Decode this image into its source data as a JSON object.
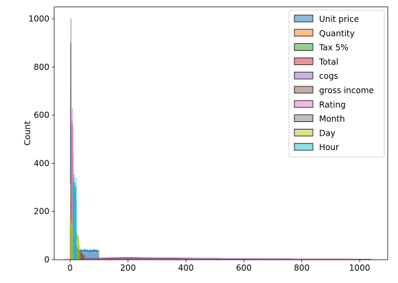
{
  "chart_data": {
    "type": "histogram",
    "title": "",
    "xlabel": "",
    "ylabel": "Count",
    "xlim": [
      -55,
      1097
    ],
    "ylim": [
      0,
      1050
    ],
    "xticks": [
      0,
      200,
      400,
      600,
      800,
      1000
    ],
    "yticks": [
      0,
      200,
      400,
      600,
      800,
      1000
    ],
    "grid": false,
    "legend_position": "top-right",
    "series": [
      {
        "name": "Unit price",
        "color": "#1f77b4",
        "range": [
          10,
          100
        ],
        "bins": [
          [
            10,
            30
          ],
          [
            14,
            35
          ],
          [
            18,
            40
          ],
          [
            22,
            38
          ],
          [
            26,
            42
          ],
          [
            30,
            36
          ],
          [
            34,
            40
          ],
          [
            38,
            44
          ],
          [
            42,
            38
          ],
          [
            46,
            41
          ],
          [
            50,
            45
          ],
          [
            54,
            39
          ],
          [
            58,
            42
          ],
          [
            62,
            40
          ],
          [
            66,
            38
          ],
          [
            70,
            43
          ],
          [
            74,
            41
          ],
          [
            78,
            39
          ],
          [
            82,
            44
          ],
          [
            86,
            40
          ],
          [
            90,
            42
          ],
          [
            94,
            38
          ],
          [
            98,
            40
          ]
        ]
      },
      {
        "name": "Quantity",
        "color": "#ff7f0e",
        "range": [
          1,
          10
        ],
        "bins": [
          [
            1,
            240
          ],
          [
            2,
            260
          ],
          [
            3,
            300
          ],
          [
            4,
            280
          ],
          [
            5,
            375
          ],
          [
            6,
            320
          ],
          [
            7,
            290
          ],
          [
            8,
            310
          ],
          [
            9,
            260
          ],
          [
            10,
            200
          ]
        ]
      },
      {
        "name": "Tax 5%",
        "color": "#2ca02c",
        "range": [
          0.5,
          50
        ],
        "bins": [
          [
            1,
            160
          ],
          [
            4,
            150
          ],
          [
            7,
            130
          ],
          [
            10,
            110
          ],
          [
            13,
            95
          ],
          [
            16,
            80
          ],
          [
            19,
            70
          ],
          [
            22,
            60
          ],
          [
            25,
            50
          ],
          [
            28,
            42
          ],
          [
            31,
            36
          ],
          [
            34,
            30
          ],
          [
            37,
            25
          ],
          [
            40,
            20
          ],
          [
            43,
            16
          ],
          [
            46,
            12
          ],
          [
            49,
            10
          ]
        ]
      },
      {
        "name": "Total",
        "color": "#d62728",
        "range": [
          10,
          1042
        ],
        "bins": [
          [
            30,
            4
          ],
          [
            60,
            5
          ],
          [
            100,
            6
          ],
          [
            150,
            8
          ],
          [
            200,
            9
          ],
          [
            250,
            8
          ],
          [
            300,
            7
          ],
          [
            350,
            7
          ],
          [
            400,
            6
          ],
          [
            450,
            5
          ],
          [
            500,
            5
          ],
          [
            550,
            4
          ],
          [
            600,
            4
          ],
          [
            650,
            3
          ],
          [
            700,
            3
          ],
          [
            750,
            3
          ],
          [
            800,
            2
          ],
          [
            850,
            2
          ],
          [
            900,
            2
          ],
          [
            950,
            2
          ],
          [
            1000,
            1
          ],
          [
            1040,
            1
          ]
        ]
      },
      {
        "name": "cogs",
        "color": "#9467bd",
        "range": [
          10,
          993
        ],
        "bins": [
          [
            30,
            3
          ],
          [
            100,
            4
          ],
          [
            200,
            5
          ],
          [
            300,
            5
          ],
          [
            400,
            4
          ],
          [
            500,
            4
          ],
          [
            600,
            3
          ],
          [
            700,
            3
          ],
          [
            800,
            2
          ],
          [
            900,
            2
          ],
          [
            990,
            1
          ]
        ]
      },
      {
        "name": "gross income",
        "color": "#8c564b",
        "range": [
          0.5,
          50
        ],
        "bins": [
          [
            2,
            110
          ],
          [
            6,
            100
          ],
          [
            10,
            90
          ],
          [
            14,
            80
          ],
          [
            18,
            70
          ],
          [
            22,
            60
          ],
          [
            26,
            50
          ],
          [
            30,
            40
          ],
          [
            34,
            35
          ],
          [
            38,
            30
          ],
          [
            42,
            25
          ],
          [
            46,
            20
          ],
          [
            49,
            15
          ]
        ]
      },
      {
        "name": "Rating",
        "color": "#e377c2",
        "range": [
          4,
          10
        ],
        "bins": [
          [
            4,
            300
          ],
          [
            5,
            420
          ],
          [
            6,
            580
          ],
          [
            7,
            628
          ],
          [
            8,
            560
          ],
          [
            9,
            440
          ],
          [
            10,
            310
          ]
        ]
      },
      {
        "name": "Month",
        "color": "#7f7f7f",
        "range": [
          1,
          3
        ],
        "bins": [
          [
            1,
            352
          ],
          [
            2,
            1000
          ],
          [
            3,
            345
          ]
        ]
      },
      {
        "name": "Day",
        "color": "#bcbd22",
        "range": [
          1,
          31
        ],
        "bins": [
          [
            1,
            180
          ],
          [
            4,
            150
          ],
          [
            7,
            140
          ],
          [
            10,
            130
          ],
          [
            13,
            120
          ],
          [
            16,
            125
          ],
          [
            19,
            115
          ],
          [
            22,
            110
          ],
          [
            25,
            105
          ],
          [
            28,
            100
          ],
          [
            31,
            50
          ]
        ]
      },
      {
        "name": "Hour",
        "color": "#17becf",
        "range": [
          10,
          20
        ],
        "bins": [
          [
            10,
            340
          ],
          [
            11,
            300
          ],
          [
            12,
            260
          ],
          [
            13,
            355
          ],
          [
            14,
            290
          ],
          [
            15,
            320
          ],
          [
            16,
            260
          ],
          [
            17,
            250
          ],
          [
            18,
            280
          ],
          [
            19,
            340
          ],
          [
            20,
            250
          ]
        ]
      }
    ]
  }
}
